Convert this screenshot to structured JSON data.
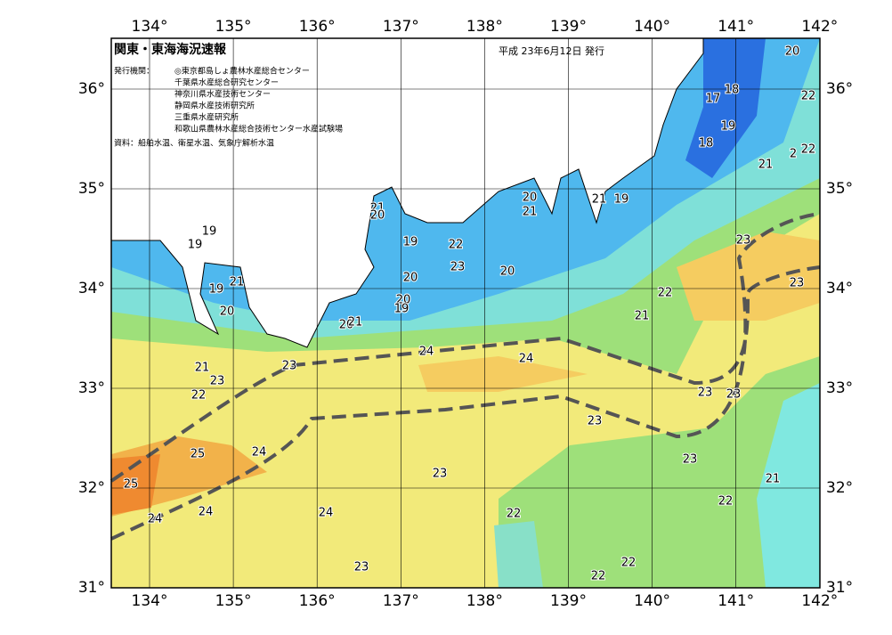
{
  "header": {
    "title": "関東・東海海況速報",
    "date": "平成 23年6月12日 発行",
    "issuers_label": "発行機関：",
    "issuers": [
      "◎東京都島しょ農林水産総合センター",
      "千葉県水産総合研究センター",
      "神奈川県水産技術センター",
      "静岡県水産技術研究所",
      "三重県水産研究所",
      "和歌山県農林水産総合技術センター水産試験場"
    ],
    "source": "資料：船舶水温、衛星水温、気象庁解析水温"
  },
  "map": {
    "longitude_labels": [
      "134°",
      "135°",
      "136°",
      "137°",
      "138°",
      "139°",
      "140°",
      "141°",
      "142°"
    ],
    "latitude_labels": [
      "36°",
      "35°",
      "34°",
      "33°",
      "32°",
      "31°"
    ],
    "contour_labels": [
      20,
      18,
      22,
      17,
      19,
      18,
      22,
      2,
      21,
      20,
      21,
      19,
      21,
      21,
      20,
      19,
      19,
      19,
      22,
      23,
      23,
      21,
      20,
      20,
      19,
      23,
      22,
      20,
      19,
      20,
      21,
      20,
      21,
      24,
      23,
      24,
      21,
      23,
      22,
      23,
      23,
      23,
      25,
      24,
      23,
      23,
      21,
      25,
      22,
      24,
      24,
      22,
      24,
      23,
      22,
      22
    ]
  }
}
